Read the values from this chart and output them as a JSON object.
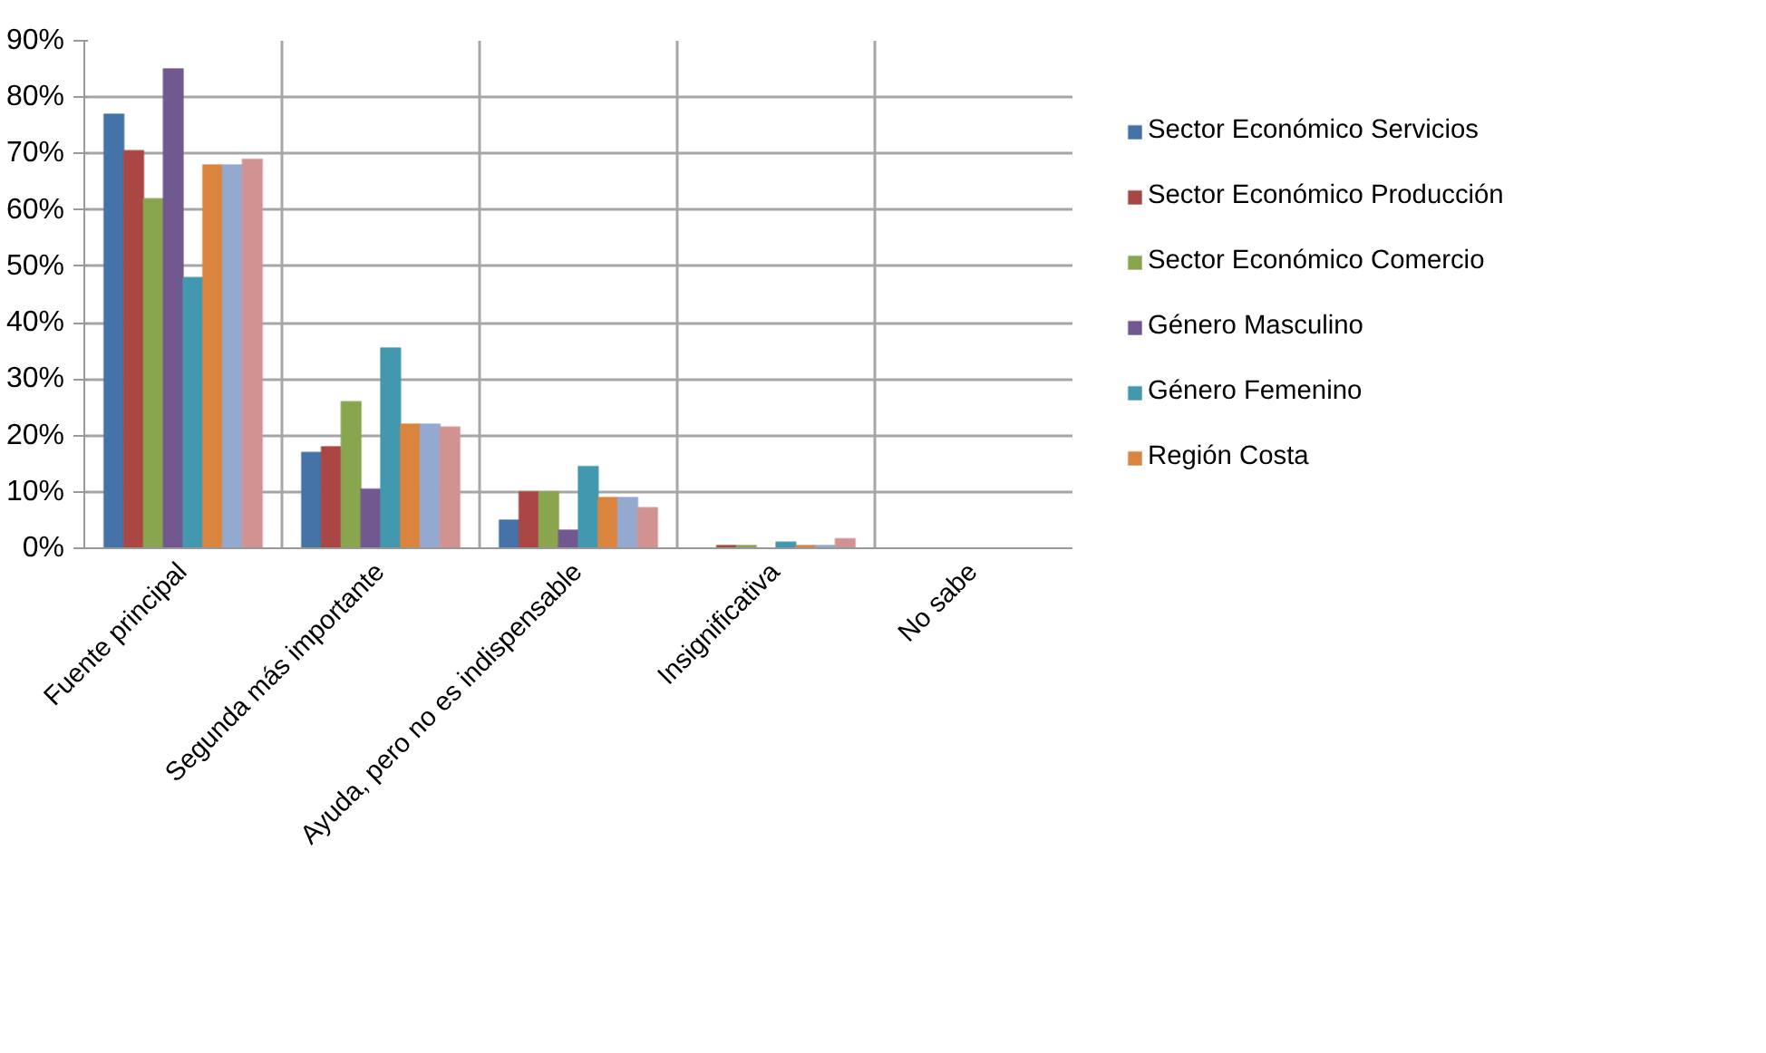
{
  "chart_data": {
    "type": "bar",
    "categories": [
      "Fuente principal",
      "Segunda más importante",
      "Ayuda, pero no es indispensable",
      "Insignificativa",
      "No sabe"
    ],
    "series": [
      {
        "name": "Sector Económico Servicios",
        "color": "#4572a7",
        "values": [
          77,
          17,
          5,
          0,
          0
        ]
      },
      {
        "name": "Sector Económico Producción",
        "color": "#aa4643",
        "values": [
          70.5,
          18,
          10,
          0.5,
          0
        ]
      },
      {
        "name": "Sector Económico Comercio",
        "color": "#89a54e",
        "values": [
          62,
          26,
          10,
          0.5,
          0
        ]
      },
      {
        "name": "Género Masculino",
        "color": "#71588f",
        "values": [
          85,
          10.5,
          3.2,
          0,
          0
        ]
      },
      {
        "name": "Género Femenino",
        "color": "#4198af",
        "values": [
          48,
          35.5,
          14.5,
          1.1,
          0
        ]
      },
      {
        "name": "Región Costa",
        "color": "#db843d",
        "values": [
          68,
          22,
          9,
          0.5,
          0
        ]
      },
      {
        "color": "#93a9cf",
        "values": [
          68,
          22,
          9,
          0.5,
          0
        ]
      },
      {
        "color": "#d19392",
        "values": [
          69,
          21.5,
          7.2,
          1.7,
          0
        ]
      }
    ],
    "ylim": [
      0,
      90
    ],
    "yticks": [
      {
        "value": 0,
        "label": "0%"
      },
      {
        "value": 10,
        "label": "10%"
      },
      {
        "value": 20,
        "label": "20%"
      },
      {
        "value": 30,
        "label": "30%"
      },
      {
        "value": 40,
        "label": "40%"
      },
      {
        "value": 50,
        "label": "50%"
      },
      {
        "value": 60,
        "label": "60%"
      },
      {
        "value": 70,
        "label": "70%"
      },
      {
        "value": 80,
        "label": "80%"
      },
      {
        "value": 90,
        "label": "90%"
      }
    ],
    "grid": true,
    "legend": "right"
  }
}
